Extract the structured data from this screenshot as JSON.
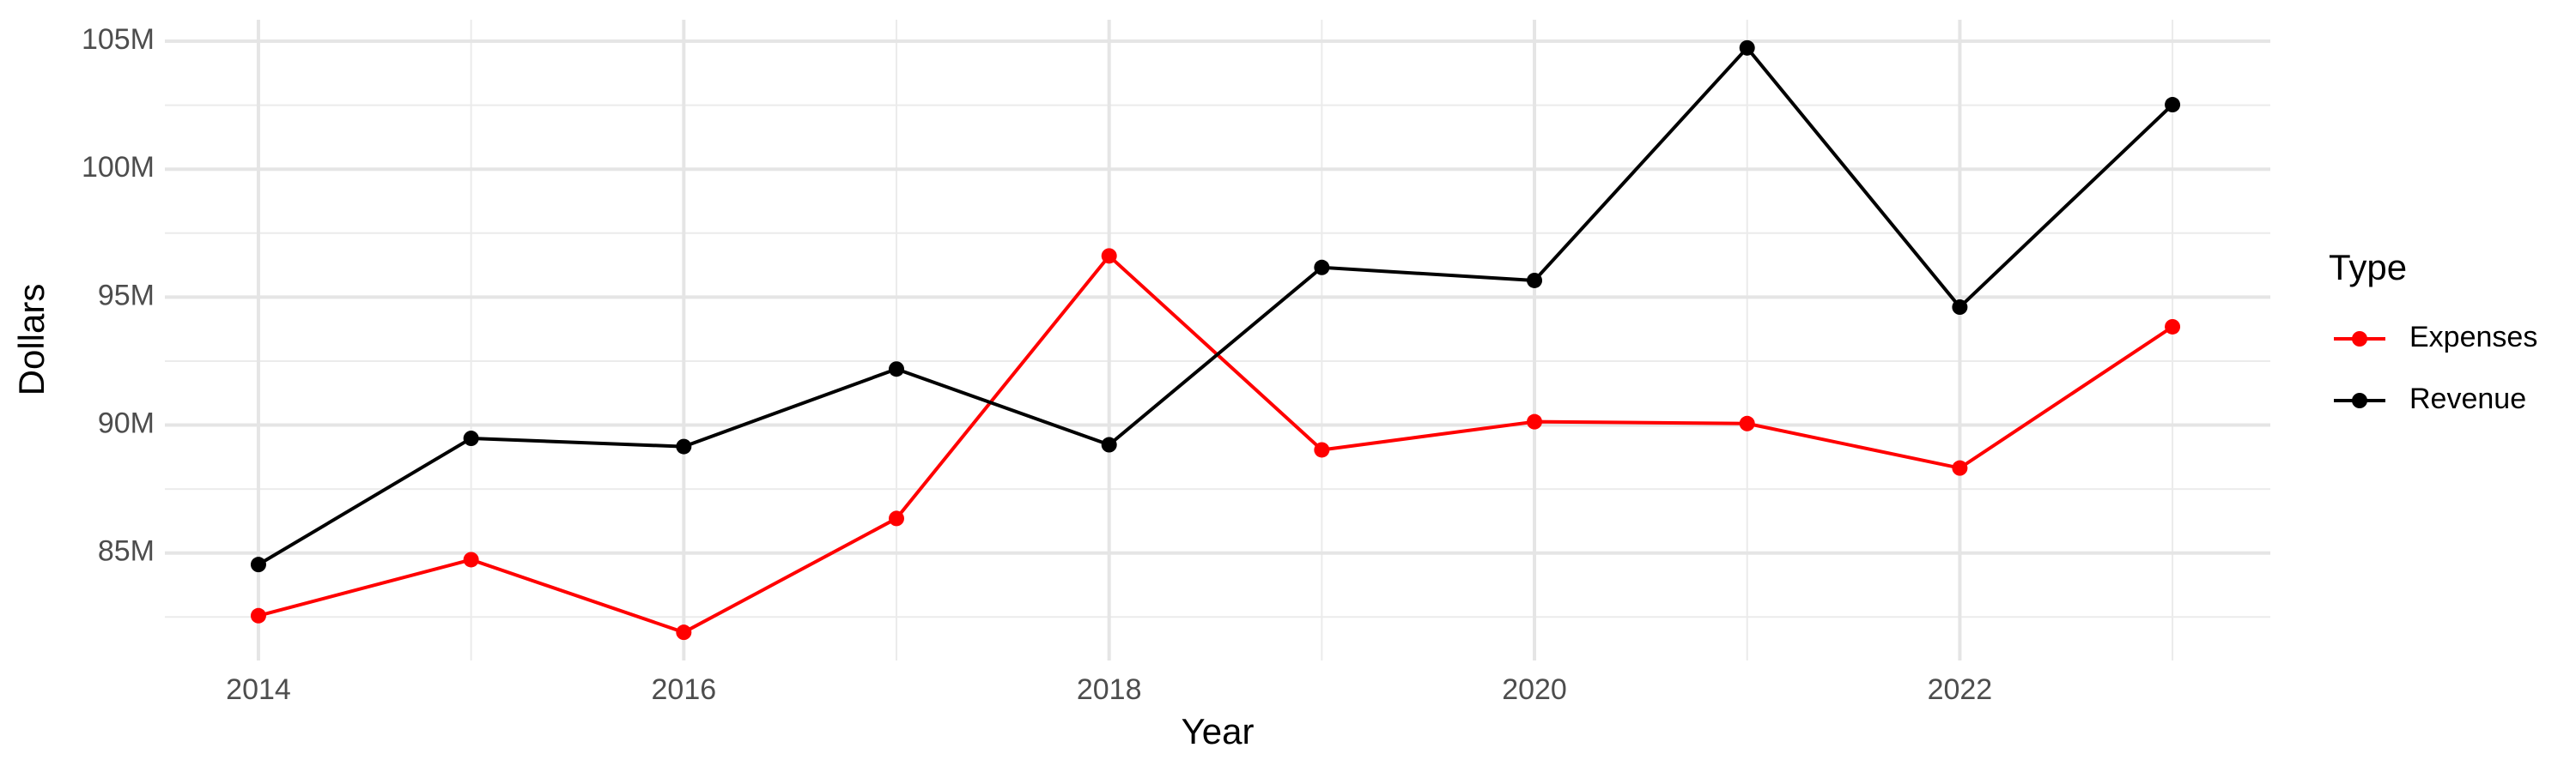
{
  "chart_data": {
    "type": "line",
    "x_label": "Year",
    "y_label": "Dollars",
    "legend_title": "Type",
    "x": [
      2014,
      2015,
      2016,
      2017,
      2018,
      2019,
      2020,
      2021,
      2022,
      2023
    ],
    "series": [
      {
        "name": "Expenses",
        "color": "#ff0000",
        "values": [
          82550000,
          84740000,
          81900000,
          86350000,
          96610000,
          89030000,
          90130000,
          90060000,
          88320000,
          93840000
        ]
      },
      {
        "name": "Revenue",
        "color": "#000000",
        "values": [
          84550000,
          89480000,
          89160000,
          92190000,
          89230000,
          96160000,
          95650000,
          104740000,
          94610000,
          102520000
        ]
      }
    ],
    "xlim": [
      2013.56,
      2023.46
    ],
    "xticks": [
      2014,
      2016,
      2018,
      2020,
      2022
    ],
    "x_minor_ticks": [
      2015,
      2017,
      2019,
      2021,
      2023
    ],
    "ylim": [
      80800000,
      105840000
    ],
    "yticks": [
      {
        "value": 85000000,
        "label": "85M"
      },
      {
        "value": 90000000,
        "label": "90M"
      },
      {
        "value": 95000000,
        "label": "95M"
      },
      {
        "value": 100000000,
        "label": "100M"
      },
      {
        "value": 105000000,
        "label": "105M"
      }
    ],
    "y_minor_ticks": [
      82500000,
      87500000,
      92500000,
      97500000,
      102500000
    ],
    "grid": true,
    "legend": "right"
  }
}
